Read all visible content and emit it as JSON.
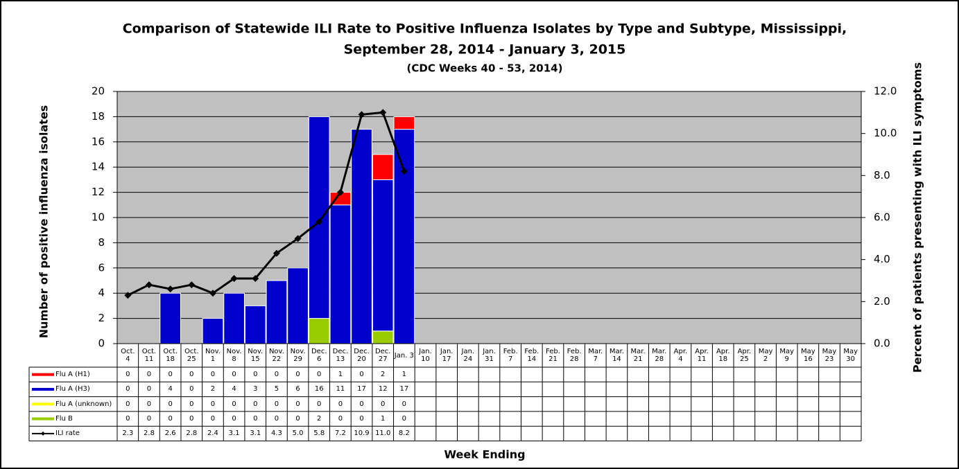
{
  "chart_data": {
    "type": "bar",
    "title": "Comparison of Statewide ILI Rate to Positive Influenza Isolates by Type and Subtype, Mississippi,",
    "subtitle": "September 28, 2014 - January 3, 2015",
    "note": "(CDC Weeks 40 - 53, 2014)",
    "y_label": "Number of positive influenza isolates",
    "y2_label": "Percent of patients presenting with ILI symptoms",
    "x_label": "Week Ending",
    "stacked": true,
    "categories": [
      "Oct. 4",
      "Oct. 11",
      "Oct. 18",
      "Oct. 25",
      "Nov. 1",
      "Nov. 8",
      "Nov. 15",
      "Nov. 22",
      "Nov. 29",
      "Dec. 6",
      "Dec. 13",
      "Dec. 20",
      "Dec. 27",
      "Jan. 3",
      "Jan. 10",
      "Jan. 17",
      "Jan. 24",
      "Jan. 31",
      "Feb. 7",
      "Feb. 14",
      "Feb. 21",
      "Feb. 28",
      "Mar. 7",
      "Mar. 14",
      "Mar. 21",
      "Mar. 28",
      "Apr. 4",
      "Apr. 11",
      "Apr. 18",
      "Apr. 25",
      "May 2",
      "May 9",
      "May 16",
      "May 23",
      "May 30"
    ],
    "series": [
      {
        "name": "Flu A (H1)",
        "color": "#ff0000",
        "type": "bar",
        "values": [
          0,
          0,
          0,
          0,
          0,
          0,
          0,
          0,
          0,
          0,
          1,
          0,
          2,
          1,
          null,
          null,
          null,
          null,
          null,
          null,
          null,
          null,
          null,
          null,
          null,
          null,
          null,
          null,
          null,
          null,
          null,
          null,
          null,
          null,
          null
        ]
      },
      {
        "name": "Flu A (H3)",
        "color": "#0000cc",
        "type": "bar",
        "values": [
          0,
          0,
          4,
          0,
          2,
          4,
          3,
          5,
          6,
          16,
          11,
          17,
          12,
          17,
          null,
          null,
          null,
          null,
          null,
          null,
          null,
          null,
          null,
          null,
          null,
          null,
          null,
          null,
          null,
          null,
          null,
          null,
          null,
          null,
          null
        ]
      },
      {
        "name": "Flu A (unknown)",
        "color": "#ffff00",
        "type": "bar",
        "values": [
          0,
          0,
          0,
          0,
          0,
          0,
          0,
          0,
          0,
          0,
          0,
          0,
          0,
          0,
          null,
          null,
          null,
          null,
          null,
          null,
          null,
          null,
          null,
          null,
          null,
          null,
          null,
          null,
          null,
          null,
          null,
          null,
          null,
          null,
          null
        ]
      },
      {
        "name": "Flu B",
        "color": "#99cc00",
        "type": "bar",
        "values": [
          0,
          0,
          0,
          0,
          0,
          0,
          0,
          0,
          0,
          2,
          0,
          0,
          1,
          0,
          null,
          null,
          null,
          null,
          null,
          null,
          null,
          null,
          null,
          null,
          null,
          null,
          null,
          null,
          null,
          null,
          null,
          null,
          null,
          null,
          null
        ]
      },
      {
        "name": "ILI rate",
        "color": "#000000",
        "type": "line",
        "axis": "y2",
        "values": [
          2.3,
          2.8,
          2.6,
          2.8,
          2.4,
          3.1,
          3.1,
          4.3,
          5.0,
          5.8,
          7.2,
          10.9,
          11.0,
          8.2,
          null,
          null,
          null,
          null,
          null,
          null,
          null,
          null,
          null,
          null,
          null,
          null,
          null,
          null,
          null,
          null,
          null,
          null,
          null,
          null,
          null
        ],
        "value_labels": [
          "2.3",
          "2.8",
          "2.6",
          "2.8",
          "2.4",
          "3.1",
          "3.1",
          "4.3",
          "5.0",
          "5.8",
          "7.2",
          "10.9",
          "11.0",
          "8.2",
          null,
          null,
          null,
          null,
          null,
          null,
          null,
          null,
          null,
          null,
          null,
          null,
          null,
          null,
          null,
          null,
          null,
          null,
          null,
          null,
          null
        ]
      }
    ],
    "ylim": [
      0,
      20
    ],
    "yticks": [
      0,
      2,
      4,
      6,
      8,
      10,
      12,
      14,
      16,
      18,
      20
    ],
    "y2lim": [
      0,
      12
    ],
    "y2ticks": [
      {
        "value": 0,
        "label": "0.0"
      },
      {
        "value": 2,
        "label": "2.0"
      },
      {
        "value": 4,
        "label": "4.0"
      },
      {
        "value": 6,
        "label": "6.0"
      },
      {
        "value": 8,
        "label": "8.0"
      },
      {
        "value": 10,
        "label": "10.0"
      },
      {
        "value": 12,
        "label": "12.0"
      }
    ],
    "grid": true,
    "plot_background": "#c0c0c0"
  }
}
